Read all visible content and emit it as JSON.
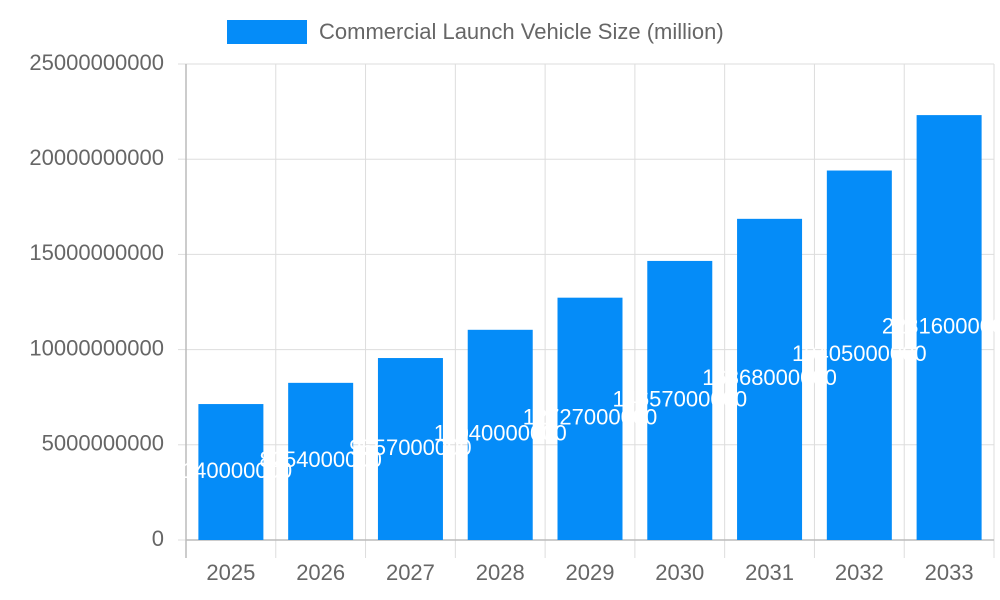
{
  "chart_data": {
    "type": "bar",
    "categories": [
      "2025",
      "2026",
      "2027",
      "2028",
      "2029",
      "2030",
      "2031",
      "2032",
      "2033"
    ],
    "series": [
      {
        "name": "Commercial Launch Vehicle Size (million)",
        "color": "#058cf8",
        "values": [
          7140000000,
          8254000000,
          9557000000,
          11040000000,
          12727000000,
          14657000000,
          16868000000,
          19405000000,
          22316000000
        ]
      }
    ],
    "ylim": [
      0,
      25000000000
    ],
    "yticks": [
      0,
      5000000000,
      10000000000,
      15000000000,
      20000000000,
      25000000000
    ],
    "grid": true,
    "legend": "top",
    "data_labels": true
  }
}
